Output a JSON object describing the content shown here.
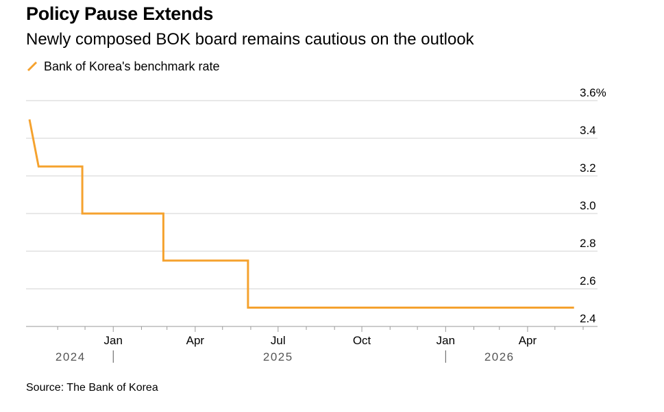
{
  "title": "Policy Pause Extends",
  "subtitle": "Newly composed BOK board remains cautious on the outlook",
  "source": "Source: The Bank of Korea",
  "colors": {
    "series": "#f5a22e",
    "grid": "#d0d0d0",
    "axis": "#9a9a9a",
    "text": "#000000",
    "year_label": "#555555"
  },
  "chart_data": {
    "type": "line",
    "line_style": "step",
    "series": [
      {
        "name": "Bank of Korea's benchmark rate",
        "color": "#f5a22e",
        "points": [
          {
            "x": "2024-10-01",
            "y": 3.5
          },
          {
            "x": "2024-10-11",
            "y": 3.25
          },
          {
            "x": "2024-11-28",
            "y": 3.25
          },
          {
            "x": "2024-11-28",
            "y": 3.0
          },
          {
            "x": "2025-02-25",
            "y": 3.0
          },
          {
            "x": "2025-02-25",
            "y": 2.75
          },
          {
            "x": "2025-05-29",
            "y": 2.75
          },
          {
            "x": "2025-05-29",
            "y": 2.5
          },
          {
            "x": "2026-05-22",
            "y": 2.5
          }
        ]
      }
    ],
    "xlim": [
      "2024-10-01",
      "2026-06-01"
    ],
    "ylim": [
      2.4,
      3.6
    ],
    "y_ticks": [
      {
        "value": 3.6,
        "label": "3.6%"
      },
      {
        "value": 3.4,
        "label": "3.4"
      },
      {
        "value": 3.2,
        "label": "3.2"
      },
      {
        "value": 3.0,
        "label": "3.0"
      },
      {
        "value": 2.8,
        "label": "2.8"
      },
      {
        "value": 2.6,
        "label": "2.6"
      },
      {
        "value": 2.4,
        "label": "2.4"
      }
    ],
    "x_ticks": [
      {
        "date": "2025-01-01",
        "label": "Jan"
      },
      {
        "date": "2025-04-01",
        "label": "Apr"
      },
      {
        "date": "2025-07-01",
        "label": "Jul"
      },
      {
        "date": "2025-10-01",
        "label": "Oct"
      },
      {
        "date": "2026-01-01",
        "label": "Jan"
      },
      {
        "date": "2026-04-01",
        "label": "Apr"
      }
    ],
    "years": [
      {
        "label": "2024",
        "center": "2024-11-15"
      },
      {
        "label": "2025",
        "center": "2025-07-01"
      },
      {
        "label": "2026",
        "center": "2026-03-01"
      }
    ],
    "year_separators": [
      "2025-01-01",
      "2026-01-01"
    ],
    "y_axis_position": "right",
    "grid": true,
    "legend_position": "top-left"
  }
}
